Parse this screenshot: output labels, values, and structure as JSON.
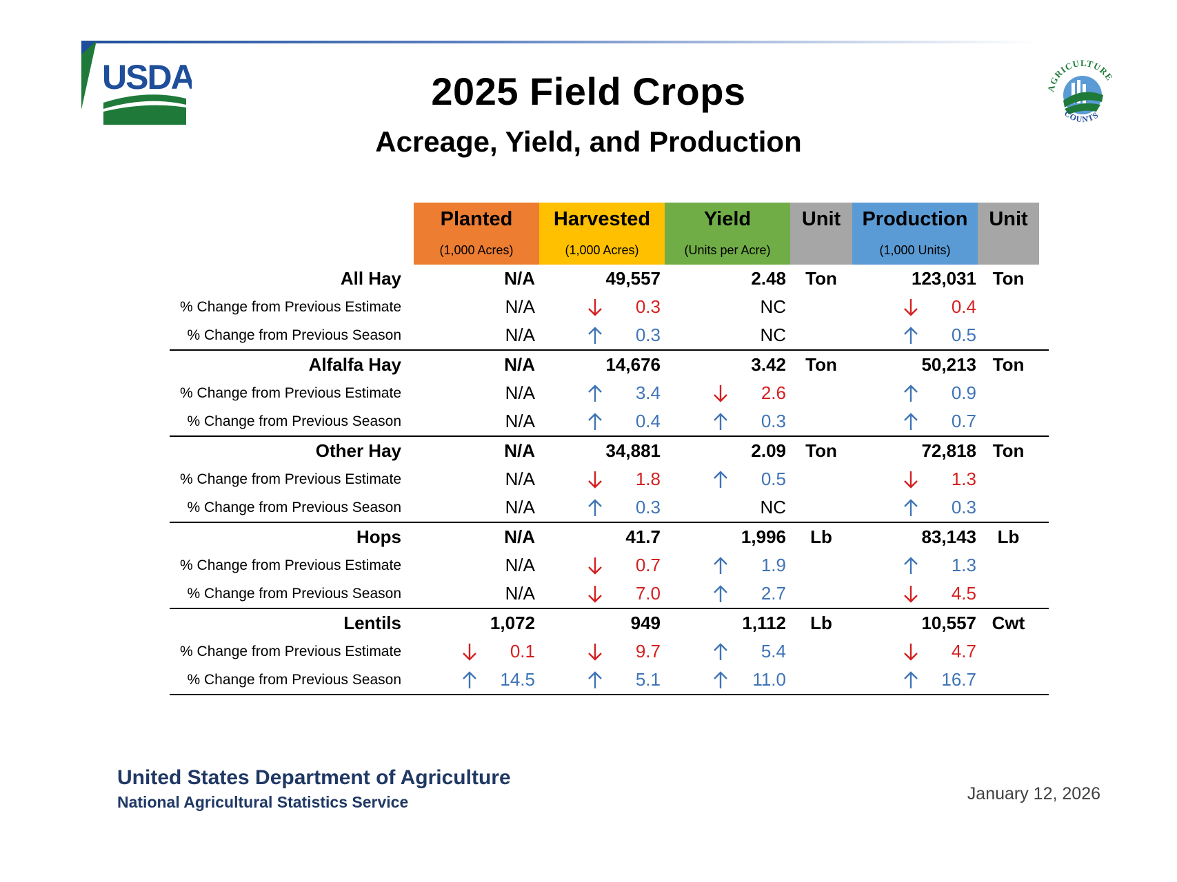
{
  "header": {
    "title": "2025 Field Crops",
    "subtitle": "Acreage, Yield, and Production",
    "logo_text": "USDA",
    "badge_text_top": "AGRICULTURE",
    "badge_text_bottom": "COUNTS"
  },
  "columns": [
    {
      "label": "Planted",
      "sub": "(1,000 Acres)",
      "color": "#ed7d31"
    },
    {
      "label": "Harvested",
      "sub": "(1,000 Acres)",
      "color": "#ffc000"
    },
    {
      "label": "Yield",
      "sub": "(Units per Acre)",
      "color": "#70ad47"
    },
    {
      "label": "Unit",
      "sub": "",
      "color": "#a6a6a6"
    },
    {
      "label": "Production",
      "sub": "(1,000 Units)",
      "color": "#5b9bd5"
    },
    {
      "label": "Unit",
      "sub": "",
      "color": "#a6a6a6"
    }
  ],
  "crops": [
    {
      "name": "All Hay",
      "planted": "N/A",
      "harvested": "49,557",
      "yield": "2.48",
      "yield_unit": "Ton",
      "production": "123,031",
      "production_unit": "Ton",
      "changes": [
        {
          "label": "% Change from Previous Estimate",
          "planted": {
            "value": "N/A",
            "dir": ""
          },
          "harvested": {
            "value": "0.3",
            "dir": "down"
          },
          "yield": {
            "value": "NC",
            "dir": ""
          },
          "production": {
            "value": "0.4",
            "dir": "down"
          }
        },
        {
          "label": "% Change from Previous Season",
          "planted": {
            "value": "N/A",
            "dir": ""
          },
          "harvested": {
            "value": "0.3",
            "dir": "up"
          },
          "yield": {
            "value": "NC",
            "dir": ""
          },
          "production": {
            "value": "0.5",
            "dir": "up"
          }
        }
      ]
    },
    {
      "name": "Alfalfa Hay",
      "planted": "N/A",
      "harvested": "14,676",
      "yield": "3.42",
      "yield_unit": "Ton",
      "production": "50,213",
      "production_unit": "Ton",
      "changes": [
        {
          "label": "% Change from Previous Estimate",
          "planted": {
            "value": "N/A",
            "dir": ""
          },
          "harvested": {
            "value": "3.4",
            "dir": "up"
          },
          "yield": {
            "value": "2.6",
            "dir": "down"
          },
          "production": {
            "value": "0.9",
            "dir": "up"
          }
        },
        {
          "label": "% Change from Previous Season",
          "planted": {
            "value": "N/A",
            "dir": ""
          },
          "harvested": {
            "value": "0.4",
            "dir": "up"
          },
          "yield": {
            "value": "0.3",
            "dir": "up"
          },
          "production": {
            "value": "0.7",
            "dir": "up"
          }
        }
      ]
    },
    {
      "name": "Other Hay",
      "planted": "N/A",
      "harvested": "34,881",
      "yield": "2.09",
      "yield_unit": "Ton",
      "production": "72,818",
      "production_unit": "Ton",
      "changes": [
        {
          "label": "% Change from Previous Estimate",
          "planted": {
            "value": "N/A",
            "dir": ""
          },
          "harvested": {
            "value": "1.8",
            "dir": "down"
          },
          "yield": {
            "value": "0.5",
            "dir": "up"
          },
          "production": {
            "value": "1.3",
            "dir": "down"
          }
        },
        {
          "label": "% Change from Previous Season",
          "planted": {
            "value": "N/A",
            "dir": ""
          },
          "harvested": {
            "value": "0.3",
            "dir": "up"
          },
          "yield": {
            "value": "NC",
            "dir": ""
          },
          "production": {
            "value": "0.3",
            "dir": "up"
          }
        }
      ]
    },
    {
      "name": "Hops",
      "planted": "N/A",
      "harvested": "41.7",
      "yield": "1,996",
      "yield_unit": "Lb",
      "production": "83,143",
      "production_unit": "Lb",
      "changes": [
        {
          "label": "% Change from Previous Estimate",
          "planted": {
            "value": "N/A",
            "dir": ""
          },
          "harvested": {
            "value": "0.7",
            "dir": "down"
          },
          "yield": {
            "value": "1.9",
            "dir": "up"
          },
          "production": {
            "value": "1.3",
            "dir": "up"
          }
        },
        {
          "label": "% Change from Previous Season",
          "planted": {
            "value": "N/A",
            "dir": ""
          },
          "harvested": {
            "value": "7.0",
            "dir": "down"
          },
          "yield": {
            "value": "2.7",
            "dir": "up"
          },
          "production": {
            "value": "4.5",
            "dir": "down"
          }
        }
      ]
    },
    {
      "name": "Lentils",
      "planted": "1,072",
      "harvested": "949",
      "yield": "1,112",
      "yield_unit": "Lb",
      "production": "10,557",
      "production_unit": "Cwt",
      "changes": [
        {
          "label": "% Change from Previous Estimate",
          "planted": {
            "value": "0.1",
            "dir": "down"
          },
          "harvested": {
            "value": "9.7",
            "dir": "down"
          },
          "yield": {
            "value": "5.4",
            "dir": "up"
          },
          "production": {
            "value": "4.7",
            "dir": "down"
          }
        },
        {
          "label": "% Change from Previous Season",
          "planted": {
            "value": "14.5",
            "dir": "up"
          },
          "harvested": {
            "value": "5.1",
            "dir": "up"
          },
          "yield": {
            "value": "11.0",
            "dir": "up"
          },
          "production": {
            "value": "16.7",
            "dir": "up"
          }
        }
      ]
    }
  ],
  "footer": {
    "org": "United States Department of Agriculture",
    "agency": "National Agricultural Statistics Service",
    "date": "January 12, 2026"
  },
  "colors": {
    "up": "#3f74b6",
    "down": "#d42020",
    "footer_text": "#1f3864"
  }
}
